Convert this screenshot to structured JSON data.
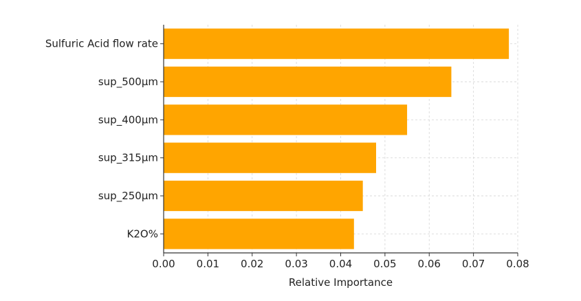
{
  "chart_data": {
    "type": "bar",
    "orientation": "horizontal",
    "categories": [
      "Sulfuric Acid flow rate",
      "sup_500µm",
      "sup_400µm",
      "sup_315µm",
      "sup_250µm",
      "K2O%"
    ],
    "values": [
      0.078,
      0.065,
      0.055,
      0.048,
      0.045,
      0.043
    ],
    "xlabel": "Relative Importance",
    "ylabel": "",
    "xlim": [
      0.0,
      0.08
    ],
    "xticks": [
      "0.00",
      "0.01",
      "0.02",
      "0.03",
      "0.04",
      "0.05",
      "0.06",
      "0.07",
      "0.08"
    ],
    "grid": true,
    "bar_color": "#FFA500"
  }
}
